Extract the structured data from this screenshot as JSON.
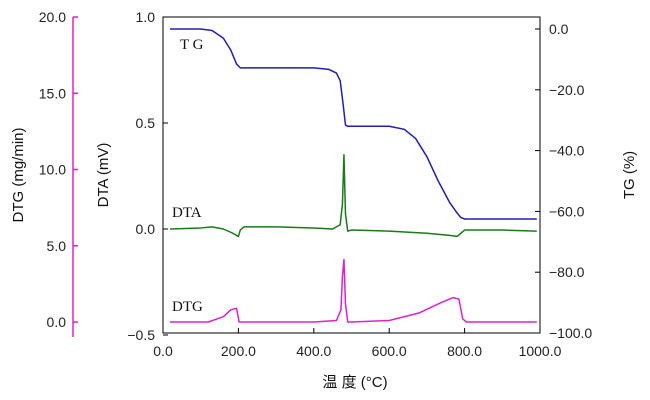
{
  "chart_data": {
    "type": "line",
    "title": "",
    "xlabel": "温 度 (°C)",
    "xlim": [
      0,
      1000
    ],
    "x_ticks": [
      0,
      200,
      400,
      600,
      800,
      1000
    ],
    "x_tick_labels": [
      "0.0",
      "200.0",
      "400.0",
      "600.0",
      "800.0",
      "1000.0"
    ],
    "grid": false,
    "axes": {
      "dtg": {
        "label": "DTG (mg/min)",
        "color": "#e020d0",
        "ylim": [
          -0.6,
          20
        ],
        "ticks": [
          0,
          5,
          10,
          15,
          20
        ],
        "tick_labels": [
          "0.0",
          "5.0",
          "10.0",
          "15.0",
          "20.0"
        ]
      },
      "dta": {
        "label": "DTA (mV)",
        "color": "#000000",
        "ylim": [
          -0.5,
          1.0
        ],
        "ticks": [
          -0.5,
          0,
          0.5,
          1.0
        ],
        "tick_labels": [
          "−0.5",
          "0.0",
          "0.5",
          "1.0"
        ]
      },
      "tg": {
        "label": "TG (%)",
        "color": "#000000",
        "ylim": [
          -100,
          5
        ],
        "ticks": [
          0,
          -20,
          -40,
          -60,
          -80,
          -100
        ],
        "tick_labels": [
          "0.0",
          "−20.0",
          "−40.0",
          "−60.0",
          "−80.0",
          "−100.0"
        ]
      }
    },
    "series": [
      {
        "name": "T G",
        "axis": "tg",
        "color": "#1f1fb4",
        "x": [
          20,
          100,
          130,
          160,
          180,
          195,
          205,
          220,
          300,
          400,
          440,
          460,
          470,
          478,
          484,
          490,
          500,
          600,
          640,
          670,
          700,
          730,
          760,
          780,
          790,
          800,
          900,
          990
        ],
        "y": [
          0,
          0,
          -0.5,
          -3,
          -7,
          -11.5,
          -12.8,
          -12.8,
          -12.8,
          -12.8,
          -13.3,
          -14.5,
          -17,
          -25,
          -31.6,
          -32,
          -32,
          -32,
          -33,
          -36,
          -42,
          -50,
          -57,
          -60.5,
          -62,
          -62.5,
          -62.5,
          -62.5
        ]
      },
      {
        "name": "DTA",
        "axis": "dta",
        "color": "#1a7a1a",
        "x": [
          20,
          100,
          130,
          160,
          185,
          200,
          205,
          215,
          300,
          400,
          450,
          470,
          476,
          480,
          484,
          490,
          500,
          600,
          700,
          760,
          780,
          790,
          800,
          900,
          990
        ],
        "y": [
          0.0,
          0.005,
          0.01,
          0.0,
          -0.02,
          -0.035,
          -0.005,
          0.01,
          0.01,
          0.005,
          0.0,
          0.02,
          0.12,
          0.35,
          0.07,
          -0.01,
          -0.005,
          -0.01,
          -0.02,
          -0.03,
          -0.035,
          -0.02,
          -0.005,
          -0.005,
          -0.01
        ]
      },
      {
        "name": "DTG",
        "axis": "dtg",
        "color": "#e020d0",
        "x": [
          20,
          120,
          160,
          180,
          195,
          202,
          210,
          300,
          400,
          460,
          472,
          476,
          480,
          484,
          490,
          500,
          600,
          680,
          740,
          770,
          785,
          795,
          805,
          900,
          990
        ],
        "y": [
          0,
          0,
          0.35,
          0.8,
          0.9,
          0,
          0,
          0,
          0,
          0.1,
          0.8,
          3.0,
          4.1,
          1.2,
          0,
          0,
          0.1,
          0.6,
          1.3,
          1.6,
          1.5,
          0.2,
          0,
          0,
          0
        ]
      }
    ],
    "annotations": [
      {
        "text": "T G",
        "series": "T G"
      },
      {
        "text": "DTA",
        "series": "DTA"
      },
      {
        "text": "DTG",
        "series": "DTG"
      }
    ]
  }
}
